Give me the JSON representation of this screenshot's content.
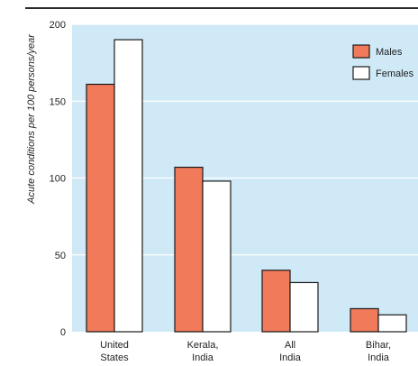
{
  "chart_data": {
    "type": "bar",
    "title": "",
    "xlabel": "",
    "ylabel": "Acute conditions per 100 persons/year",
    "ylim": [
      0,
      200
    ],
    "yticks": [
      0,
      50,
      100,
      150,
      200
    ],
    "grid": "horizontal",
    "legend_position": "top-right",
    "categories": [
      [
        "United",
        "States"
      ],
      [
        "Kerala,",
        "India"
      ],
      [
        "All",
        "India"
      ],
      [
        "Bihar,",
        "India"
      ]
    ],
    "series": [
      {
        "name": "Males",
        "color": "#f07a5a",
        "values": [
          161,
          107,
          40,
          15
        ]
      },
      {
        "name": "Females",
        "color": "#ffffff",
        "values": [
          190,
          98,
          32,
          11
        ]
      }
    ]
  },
  "colors": {
    "plot_background": "#cfe9f7",
    "gridline": "#ffffff",
    "bar_outline": "#1a1a1a"
  }
}
